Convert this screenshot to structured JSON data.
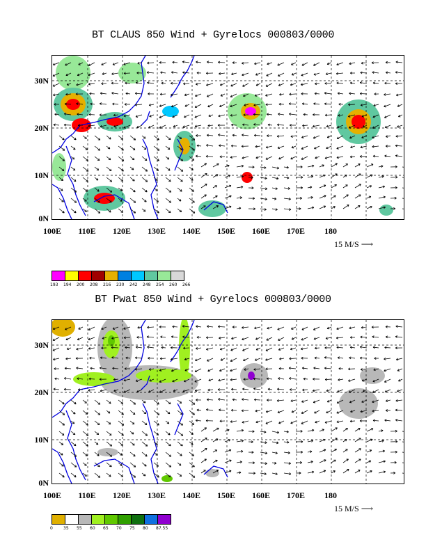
{
  "panels": [
    {
      "id": "claus",
      "title": "BT CLAUS 850 Wind + Gyrelocs 000803/0000",
      "y_ticks": [
        "30N",
        "20N",
        "10N",
        "0N"
      ],
      "x_ticks": [
        "100E",
        "110E",
        "120E",
        "130E",
        "140E",
        "150E",
        "160E",
        "170E",
        "180"
      ],
      "vector_ref": "15 M/S",
      "legend": {
        "colors": [
          "#ff00ff",
          "#ffff00",
          "#ff0000",
          "#a00000",
          "#e6b000",
          "#0080e0",
          "#00c8ff",
          "#60c8a0",
          "#98e898",
          "#d8d8d8"
        ],
        "labels": [
          "193",
          "194",
          "200",
          "208",
          "216",
          "230",
          "242",
          "248",
          "254",
          "260",
          "266"
        ]
      }
    },
    {
      "id": "pwat",
      "title": "BT Pwat 850 Wind + Gyrelocs 000803/0000",
      "y_ticks": [
        "30N",
        "20N",
        "10N",
        "0N"
      ],
      "x_ticks": [
        "100E",
        "110E",
        "120E",
        "130E",
        "140E",
        "150E",
        "160E",
        "170E",
        "180"
      ],
      "vector_ref": "15 M/S",
      "legend": {
        "colors": [
          "#e0b000",
          "#ffffff",
          "#b8b8b8",
          "#a0f020",
          "#60c800",
          "#30a000",
          "#107010",
          "#1070e0",
          "#9000d0"
        ],
        "labels": [
          "0",
          "35",
          "55",
          "60",
          "65",
          "70",
          "75",
          "80",
          "87.55"
        ]
      }
    }
  ]
}
